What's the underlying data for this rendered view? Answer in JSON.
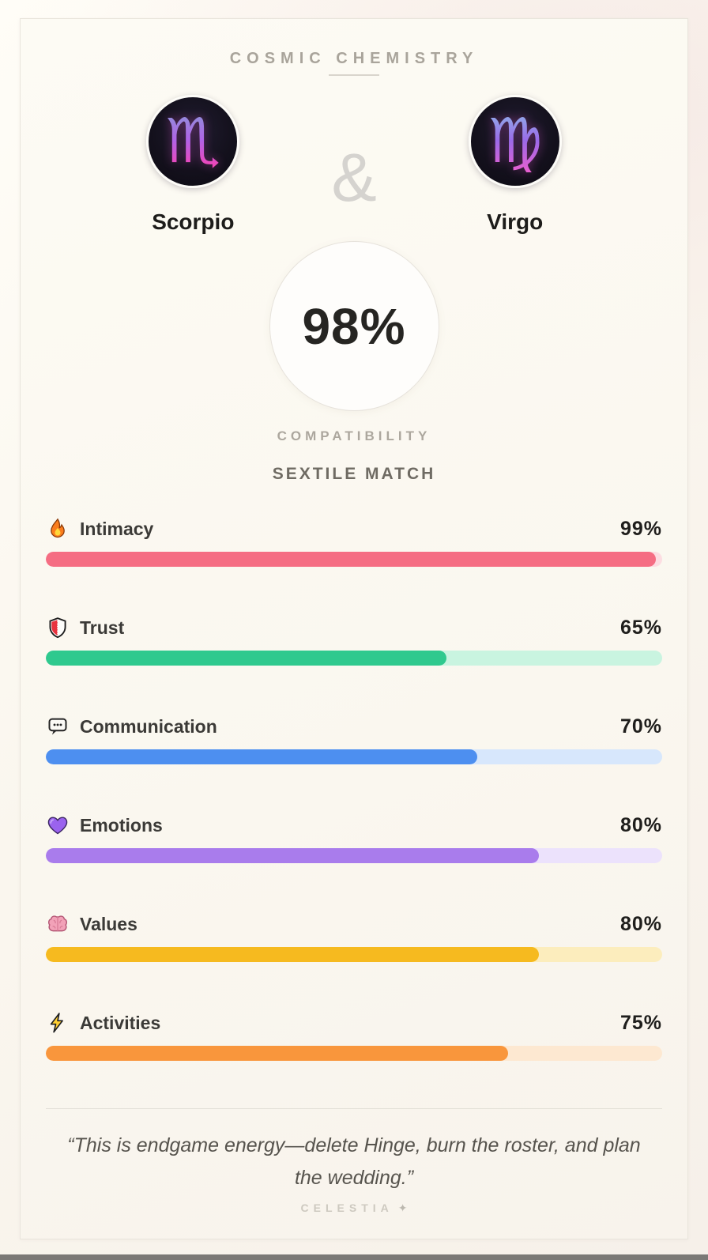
{
  "header": {
    "title": "COSMIC CHEMISTRY"
  },
  "pair": {
    "left": {
      "name": "Scorpio",
      "glyph": "♏",
      "glyph_icon": "scorpio-sign-icon",
      "gradient_top": "#8d93d9",
      "gradient_mid": "#b163e6",
      "gradient_bottom": "#ff3fae"
    },
    "separator": "&",
    "right": {
      "name": "Virgo",
      "glyph": "♍",
      "glyph_icon": "virgo-sign-icon",
      "gradient_top": "#8fb3e8",
      "gradient_mid": "#9a6ae8",
      "gradient_bottom": "#e95fd1"
    }
  },
  "score": {
    "value": "98%",
    "label": "COMPATIBILITY"
  },
  "match_type": "SEXTILE MATCH",
  "stats": [
    {
      "icon": "fire",
      "icon_name": "fire-icon",
      "label": "Intimacy",
      "value": "99%",
      "percent": 99,
      "fill": "#f56d83",
      "track": "#fcdde2"
    },
    {
      "icon": "shield",
      "icon_name": "shield-icon",
      "label": "Trust",
      "value": "65%",
      "percent": 65,
      "fill": "#2fc98e",
      "track": "#c9f4e0"
    },
    {
      "icon": "speech",
      "icon_name": "speech-bubble-icon",
      "label": "Communication",
      "value": "70%",
      "percent": 70,
      "fill": "#4d8ff0",
      "track": "#d7e7fc"
    },
    {
      "icon": "heart",
      "icon_name": "purple-heart-icon",
      "label": "Emotions",
      "value": "80%",
      "percent": 80,
      "fill": "#a97cec",
      "track": "#ece2fc"
    },
    {
      "icon": "brain",
      "icon_name": "brain-icon",
      "label": "Values",
      "value": "80%",
      "percent": 80,
      "fill": "#f6ba1f",
      "track": "#fcedbd"
    },
    {
      "icon": "bolt",
      "icon_name": "lightning-icon",
      "label": "Activities",
      "value": "75%",
      "percent": 75,
      "fill": "#f9963c",
      "track": "#fde8d1"
    }
  ],
  "quote": "“This is endgame energy—delete Hinge, burn the roster, and plan the wedding.”",
  "footer": {
    "brand": "CELESTIA",
    "star": "✦"
  }
}
